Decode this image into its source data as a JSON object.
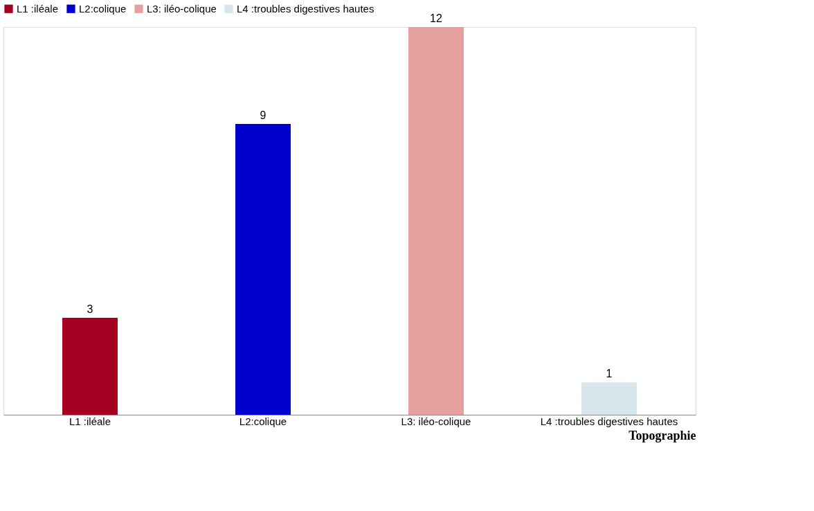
{
  "chart_data": {
    "type": "bar",
    "xlabel": "Topographie",
    "categories": [
      "L1 :iléale",
      "L2:colique",
      "L3: iléo-colique",
      "L4 :troubles digestives hautes"
    ],
    "series": [
      {
        "name": "L1 :iléale",
        "color": "#a50021",
        "values": [
          3,
          null,
          null,
          null
        ]
      },
      {
        "name": "L2:colique",
        "color": "#0000cc",
        "values": [
          null,
          9,
          null,
          null
        ]
      },
      {
        "name": "L3: iléo-colique",
        "color": "#e6a0a0",
        "values": [
          null,
          null,
          12,
          null
        ]
      },
      {
        "name": "L4 :troubles digestives hautes",
        "color": "#d6e6ea",
        "values": [
          null,
          null,
          null,
          1
        ]
      }
    ],
    "data_labels": true,
    "legend": "top",
    "grid": false
  }
}
